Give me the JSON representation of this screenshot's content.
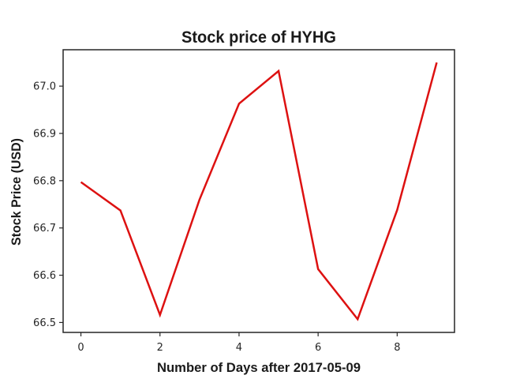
{
  "chart_data": {
    "type": "line",
    "title": "Stock price of HYHG",
    "xlabel": "Number of Days after 2017-05-09",
    "ylabel": "Stock Price (USD)",
    "x": [
      0,
      1,
      2,
      3,
      4,
      5,
      6,
      7,
      8,
      9
    ],
    "series": [
      {
        "values": [
          66.797,
          66.737,
          66.516,
          66.76,
          66.963,
          67.032,
          66.613,
          66.507,
          66.738,
          67.05
        ]
      }
    ],
    "xlim": [
      -0.45,
      9.45
    ],
    "ylim": [
      66.479,
      67.077
    ],
    "xticks": [
      0,
      2,
      4,
      6,
      8
    ],
    "yticks": [
      66.5,
      66.6,
      66.7,
      66.8,
      66.9,
      67.0
    ],
    "ytick_labels": [
      "66.5",
      "66.6",
      "66.7",
      "66.8",
      "66.9",
      "67.0"
    ],
    "line_color": "#dd1111",
    "grid": false,
    "legend": "none"
  }
}
